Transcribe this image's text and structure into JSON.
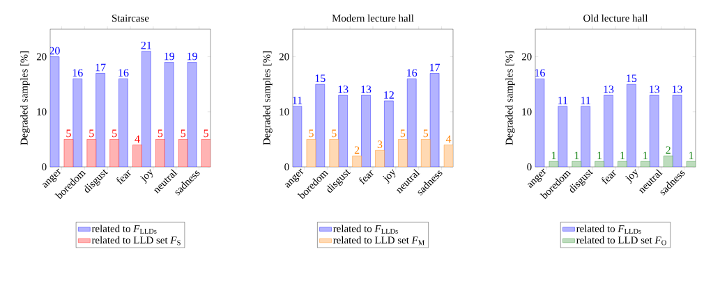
{
  "chart_data": [
    {
      "type": "bar",
      "title": "Staircase",
      "ylabel": "Degraded samples [%]",
      "categories": [
        "anger",
        "boredom",
        "disgust",
        "fear",
        "joy",
        "neutral",
        "sadness"
      ],
      "ylim": [
        0,
        25
      ],
      "yticks": [
        0,
        10,
        20
      ],
      "data_labels": true,
      "legend": "bottom",
      "grid": false,
      "series": [
        {
          "name": "related to *F*$_{LLDs}$",
          "color": "#b3b3ff",
          "values": [
            20,
            16,
            17,
            16,
            21,
            19,
            19
          ]
        },
        {
          "name": "related to LLD set *F*$_{S}$",
          "color": "#ffb3b3",
          "values": [
            5,
            5,
            5,
            4,
            5,
            5,
            5
          ]
        }
      ]
    },
    {
      "type": "bar",
      "title": "Modern lecture hall",
      "ylabel": "Degraded samples [%]",
      "categories": [
        "anger",
        "boredom",
        "disgust",
        "fear",
        "joy",
        "neutral",
        "sadness"
      ],
      "ylim": [
        0,
        25
      ],
      "yticks": [
        0,
        10,
        20
      ],
      "data_labels": true,
      "legend": "bottom",
      "grid": false,
      "series": [
        {
          "name": "related to *F*$_{LLDs}$",
          "color": "#b3b3ff",
          "values": [
            11,
            15,
            13,
            13,
            12,
            16,
            17
          ]
        },
        {
          "name": "related to LLD set *F*$_{M}$",
          "color": "#ffd9b3",
          "values": [
            5,
            5,
            2,
            3,
            5,
            5,
            4
          ]
        }
      ]
    },
    {
      "type": "bar",
      "title": "Old lecture hall",
      "ylabel": "Degraded samples [%]",
      "categories": [
        "anger",
        "boredom",
        "disgust",
        "fear",
        "joy",
        "neutral",
        "sadness"
      ],
      "ylim": [
        0,
        25
      ],
      "yticks": [
        0,
        10,
        20
      ],
      "data_labels": true,
      "legend": "bottom",
      "grid": false,
      "series": [
        {
          "name": "related to *F*$_{LLDs}$",
          "color": "#b3b3ff",
          "values": [
            16,
            11,
            11,
            13,
            15,
            13,
            13
          ]
        },
        {
          "name": "related to LLD set *F*$_{O}$",
          "color": "#bddcbd",
          "values": [
            1,
            1,
            1,
            1,
            1,
            2,
            1
          ]
        }
      ]
    }
  ]
}
